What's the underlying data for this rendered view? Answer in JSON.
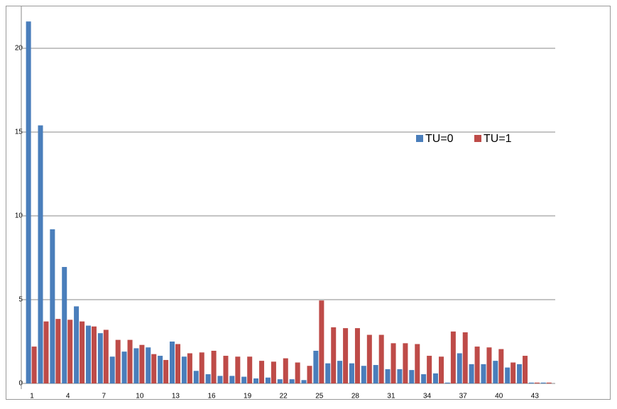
{
  "chart_data": {
    "type": "bar",
    "categories": [
      "1",
      null,
      null,
      "4",
      null,
      null,
      "7",
      null,
      null,
      "10",
      null,
      null,
      "13",
      null,
      null,
      "16",
      null,
      null,
      "19",
      null,
      null,
      "22",
      null,
      null,
      "25",
      null,
      null,
      "28",
      null,
      null,
      "31",
      null,
      null,
      "34",
      null,
      null,
      "37",
      null,
      null,
      "40",
      null,
      null,
      "43",
      null
    ],
    "series": [
      {
        "name": "TU=0",
        "color": "#4a7ebb",
        "values": [
          21.6,
          15.4,
          9.2,
          6.95,
          4.6,
          3.45,
          3.0,
          1.6,
          1.9,
          2.1,
          2.15,
          1.65,
          2.5,
          1.6,
          0.75,
          0.55,
          0.45,
          0.45,
          0.4,
          0.3,
          0.35,
          0.25,
          0.25,
          0.2,
          1.95,
          1.2,
          1.35,
          1.2,
          1.05,
          1.1,
          0.85,
          0.85,
          0.8,
          0.55,
          0.6,
          0.05,
          1.8,
          1.15,
          1.15,
          1.35,
          0.95,
          1.15,
          0.05,
          0.05
        ]
      },
      {
        "name": "TU=1",
        "color": "#be4b48",
        "values": [
          2.2,
          3.7,
          3.85,
          3.8,
          3.7,
          3.4,
          3.2,
          2.6,
          2.6,
          2.3,
          1.75,
          1.4,
          2.35,
          1.8,
          1.85,
          1.95,
          1.65,
          1.6,
          1.6,
          1.35,
          1.3,
          1.5,
          1.25,
          1.05,
          4.95,
          3.35,
          3.3,
          3.3,
          2.9,
          2.9,
          2.4,
          2.4,
          2.35,
          1.65,
          1.6,
          3.1,
          3.05,
          2.2,
          2.15,
          2.05,
          1.25,
          1.65,
          0.05,
          0.05
        ]
      }
    ],
    "ylim": [
      0,
      22.5
    ],
    "yticks": [
      0,
      5,
      10,
      15,
      20
    ],
    "grid": true,
    "legend": "right"
  }
}
